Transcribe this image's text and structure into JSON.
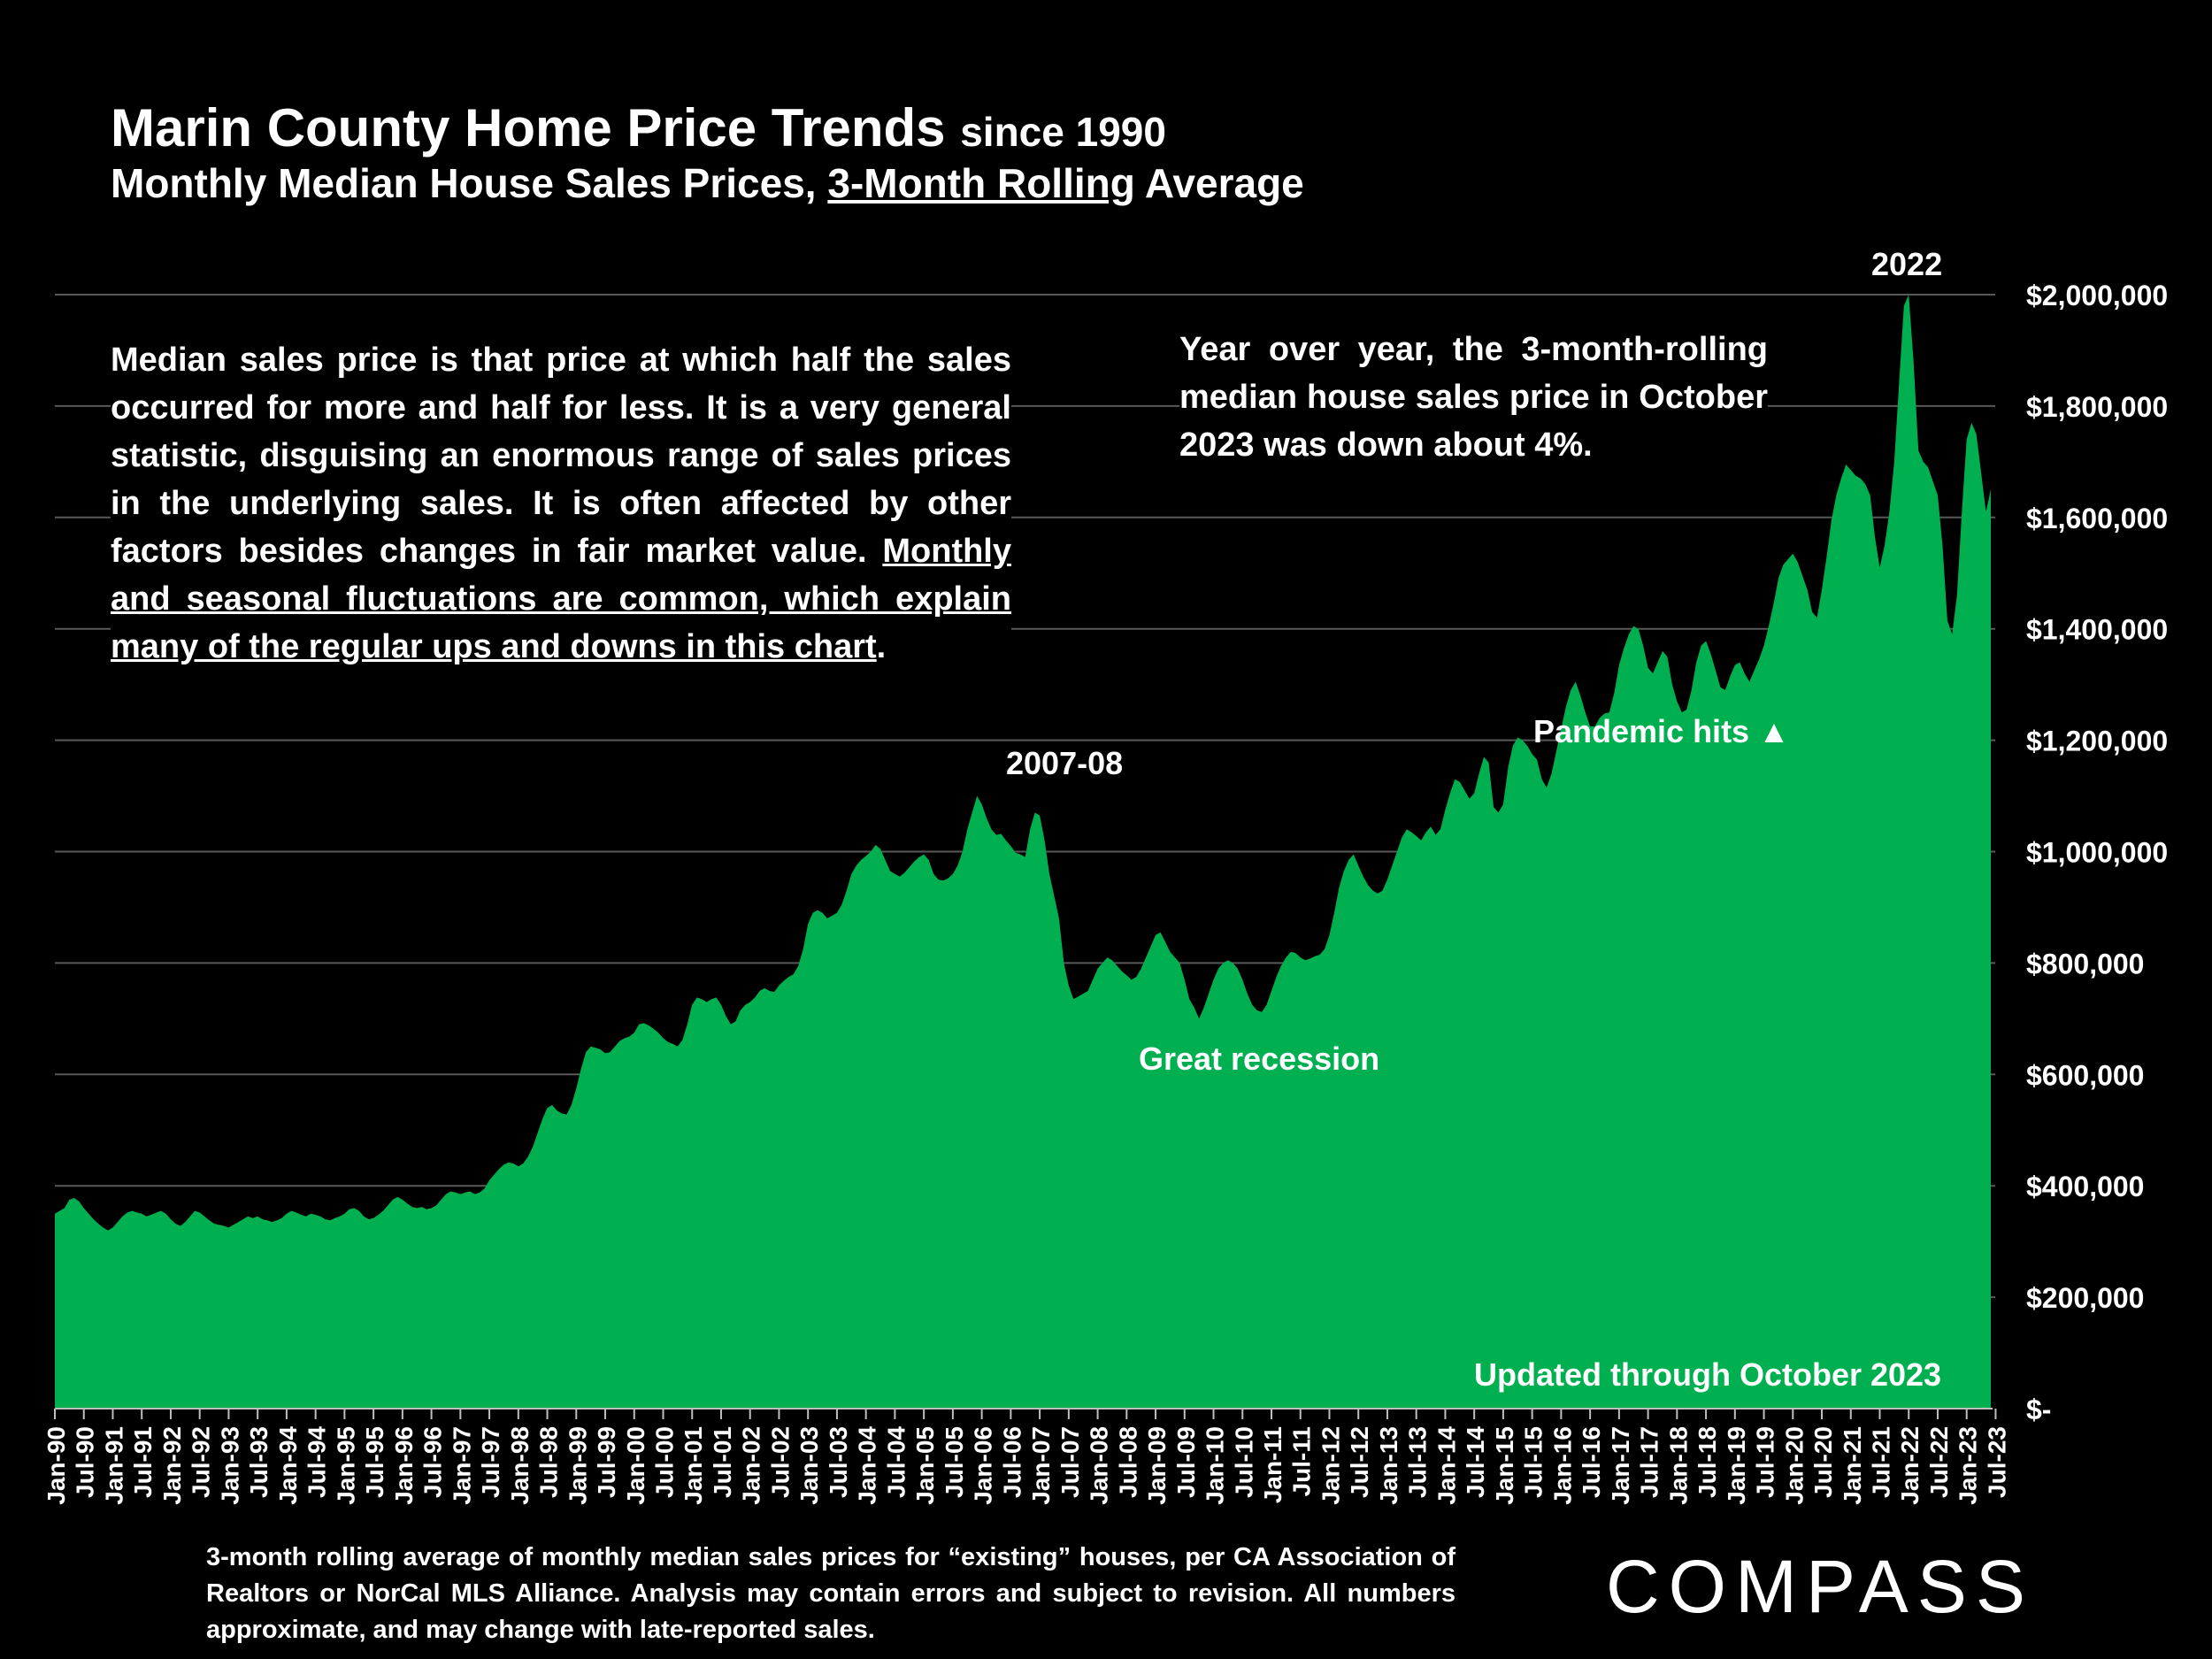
{
  "header": {
    "title_main": "Marin County Home Price Trends",
    "title_since": "since 1990",
    "subtitle_pre": "Monthly Median House Sales Prices, ",
    "subtitle_underlined": "3-Month Rolling",
    "subtitle_post": " Average"
  },
  "notes": {
    "left_plain": "Median sales price is that price at which half the sales occurred for more and half for less. It is a very general statistic, disguising an enormous range of sales prices in the underlying sales. It is often affected by other factors besides changes in fair market value. ",
    "left_underlined": "Monthly and seasonal fluctuations are common, which explain many of the regular ups and downs in this chart",
    "left_end": ".",
    "right": "Year over year, the 3-month-rolling median house sales price in October 2023 was down about 4%."
  },
  "annotations": {
    "peak_2022": "2022",
    "peak_2007": "2007-08",
    "pandemic": "Pandemic hits",
    "pandemic_marker": "▲",
    "recession": "Great recession",
    "updated": "Updated through October 2023"
  },
  "footnote": "3-month rolling average of monthly median sales prices for “existing” houses, per CA Association of Realtors or NorCal MLS Alliance. Analysis may contain errors and subject to revision. All numbers approximate, and may change with late-reported sales.",
  "brand": {
    "logo_text": "COMPASS"
  },
  "colors": {
    "background": "#000000",
    "area": "#00B050",
    "gridline": "#595959",
    "text": "#FFFFFF"
  },
  "chart_data": {
    "type": "area",
    "title": "Marin County Home Price Trends since 1990",
    "subtitle": "Monthly Median House Sales Prices, 3-Month Rolling Average",
    "x_start": "Jan-90",
    "x_end": "Oct-23",
    "x_labels": [
      "Jan-90",
      "Jul-90",
      "Jan-91",
      "Jul-91",
      "Jan-92",
      "Jul-92",
      "Jan-93",
      "Jul-93",
      "Jan-94",
      "Jul-94",
      "Jan-95",
      "Jul-95",
      "Jan-96",
      "Jul-96",
      "Jan-97",
      "Jul-97",
      "Jan-98",
      "Jul-98",
      "Jan-99",
      "Jul-99",
      "Jan-00",
      "Jul-00",
      "Jan-01",
      "Jul-01",
      "Jan-02",
      "Jul-02",
      "Jan-03",
      "Jul-03",
      "Jan-04",
      "Jul-04",
      "Jan-05",
      "Jul-05",
      "Jan-06",
      "Jul-06",
      "Jan-07",
      "Jul-07",
      "Jan-08",
      "Jul-08",
      "Jan-09",
      "Jul-09",
      "Jan-10",
      "Jul-10",
      "Jan-11",
      "Jul-11",
      "Jan-12",
      "Jul-12",
      "Jan-13",
      "Jul-13",
      "Jan-14",
      "Jul-14",
      "Jan-15",
      "Jul-15",
      "Jan-16",
      "Jul-16",
      "Jan-17",
      "Jul-17",
      "Jan-18",
      "Jul-18",
      "Jan-19",
      "Jul-19",
      "Jan-20",
      "Jul-20",
      "Jan-21",
      "Jul-21",
      "Jan-22",
      "Jul-22",
      "Jan-23",
      "Jul-23"
    ],
    "y_ticks": [
      0,
      200000,
      400000,
      600000,
      800000,
      1000000,
      1200000,
      1400000,
      1600000,
      1800000,
      2000000
    ],
    "y_tick_labels": [
      "$-",
      "$200,000",
      "$400,000",
      "$600,000",
      "$800,000",
      "$1,000,000",
      "$1,200,000",
      "$1,400,000",
      "$1,600,000",
      "$1,800,000",
      "$2,000,000"
    ],
    "ylim": [
      0,
      2000000
    ],
    "y_axis_position": "right",
    "grid": true,
    "series": [
      {
        "values": [
          350000,
          355000,
          360000,
          375000,
          378000,
          372000,
          360000,
          350000,
          340000,
          332000,
          325000,
          320000,
          325000,
          335000,
          345000,
          352000,
          355000,
          352000,
          350000,
          345000,
          348000,
          352000,
          355000,
          350000,
          340000,
          332000,
          328000,
          335000,
          345000,
          355000,
          352000,
          345000,
          338000,
          332000,
          330000,
          328000,
          325000,
          330000,
          335000,
          340000,
          345000,
          342000,
          345000,
          340000,
          338000,
          335000,
          338000,
          342000,
          350000,
          355000,
          352000,
          348000,
          345000,
          350000,
          348000,
          345000,
          340000,
          338000,
          342000,
          345000,
          350000,
          358000,
          360000,
          355000,
          345000,
          340000,
          342000,
          348000,
          355000,
          365000,
          375000,
          380000,
          375000,
          368000,
          362000,
          360000,
          362000,
          358000,
          360000,
          365000,
          375000,
          385000,
          390000,
          388000,
          385000,
          388000,
          390000,
          385000,
          388000,
          395000,
          410000,
          420000,
          430000,
          438000,
          442000,
          440000,
          435000,
          440000,
          452000,
          470000,
          495000,
          520000,
          540000,
          545000,
          535000,
          530000,
          528000,
          545000,
          575000,
          610000,
          640000,
          650000,
          648000,
          645000,
          638000,
          640000,
          650000,
          660000,
          665000,
          668000,
          675000,
          690000,
          692000,
          688000,
          682000,
          675000,
          665000,
          658000,
          655000,
          650000,
          662000,
          690000,
          725000,
          738000,
          735000,
          730000,
          735000,
          738000,
          725000,
          705000,
          690000,
          695000,
          715000,
          725000,
          730000,
          738000,
          750000,
          755000,
          750000,
          748000,
          760000,
          768000,
          775000,
          780000,
          795000,
          825000,
          870000,
          890000,
          895000,
          890000,
          880000,
          885000,
          890000,
          905000,
          930000,
          960000,
          975000,
          985000,
          992000,
          1000000,
          1012000,
          1005000,
          985000,
          965000,
          960000,
          955000,
          962000,
          972000,
          982000,
          990000,
          995000,
          985000,
          960000,
          950000,
          948000,
          952000,
          960000,
          975000,
          1000000,
          1040000,
          1070000,
          1100000,
          1085000,
          1060000,
          1040000,
          1030000,
          1032000,
          1020000,
          1010000,
          998000,
          995000,
          990000,
          1040000,
          1070000,
          1065000,
          1020000,
          960000,
          920000,
          880000,
          800000,
          760000,
          735000,
          740000,
          745000,
          750000,
          770000,
          790000,
          800000,
          810000,
          805000,
          795000,
          785000,
          778000,
          770000,
          775000,
          790000,
          810000,
          830000,
          850000,
          855000,
          838000,
          820000,
          810000,
          800000,
          770000,
          735000,
          720000,
          700000,
          720000,
          745000,
          770000,
          790000,
          800000,
          805000,
          800000,
          790000,
          770000,
          745000,
          725000,
          715000,
          712000,
          725000,
          750000,
          775000,
          795000,
          810000,
          820000,
          818000,
          810000,
          805000,
          808000,
          812000,
          815000,
          825000,
          850000,
          890000,
          935000,
          965000,
          985000,
          995000,
          975000,
          955000,
          940000,
          930000,
          925000,
          930000,
          950000,
          975000,
          1000000,
          1025000,
          1040000,
          1035000,
          1028000,
          1020000,
          1035000,
          1045000,
          1030000,
          1040000,
          1075000,
          1105000,
          1130000,
          1125000,
          1110000,
          1095000,
          1105000,
          1140000,
          1170000,
          1160000,
          1080000,
          1070000,
          1085000,
          1150000,
          1190000,
          1205000,
          1200000,
          1190000,
          1175000,
          1165000,
          1130000,
          1115000,
          1140000,
          1180000,
          1220000,
          1260000,
          1290000,
          1305000,
          1280000,
          1250000,
          1225000,
          1225000,
          1240000,
          1248000,
          1250000,
          1285000,
          1335000,
          1365000,
          1390000,
          1405000,
          1400000,
          1370000,
          1330000,
          1320000,
          1340000,
          1360000,
          1350000,
          1300000,
          1270000,
          1250000,
          1255000,
          1290000,
          1340000,
          1370000,
          1378000,
          1355000,
          1325000,
          1295000,
          1290000,
          1315000,
          1335000,
          1340000,
          1320000,
          1305000,
          1325000,
          1345000,
          1370000,
          1405000,
          1445000,
          1490000,
          1515000,
          1525000,
          1535000,
          1520000,
          1495000,
          1470000,
          1430000,
          1420000,
          1470000,
          1530000,
          1595000,
          1640000,
          1670000,
          1695000,
          1685000,
          1675000,
          1670000,
          1660000,
          1640000,
          1565000,
          1510000,
          1550000,
          1610000,
          1700000,
          1840000,
          1980000,
          2000000,
          1880000,
          1720000,
          1700000,
          1690000,
          1665000,
          1640000,
          1550000,
          1415000,
          1390000,
          1460000,
          1610000,
          1740000,
          1770000,
          1750000,
          1680000,
          1610000,
          1650000
        ]
      }
    ]
  }
}
